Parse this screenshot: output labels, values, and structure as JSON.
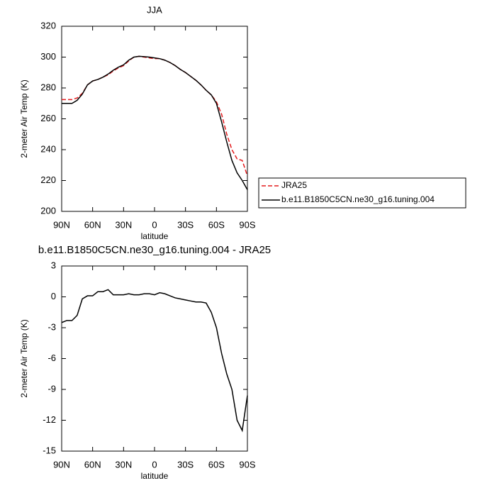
{
  "chart_data": [
    {
      "type": "line",
      "title": "JJA",
      "x_label": "latitude",
      "y_label": "2-meter Air Temp (K)",
      "x": [
        90,
        85,
        80,
        75,
        70,
        65,
        60,
        55,
        50,
        45,
        40,
        35,
        30,
        25,
        20,
        15,
        10,
        5,
        0,
        -5,
        -10,
        -15,
        -20,
        -25,
        -30,
        -35,
        -40,
        -45,
        -50,
        -55,
        -60,
        -65,
        -70,
        -75,
        -80,
        -85,
        -90
      ],
      "xlim": [
        90,
        -90
      ],
      "xticks": [
        {
          "value": 90,
          "label": "90N"
        },
        {
          "value": 60,
          "label": "60N"
        },
        {
          "value": 30,
          "label": "30N"
        },
        0,
        {
          "value": -30,
          "label": "30S"
        },
        {
          "value": -60,
          "label": "60S"
        },
        {
          "value": -90,
          "label": "90S"
        }
      ],
      "ylim": [
        200,
        320
      ],
      "yticks": [
        200,
        220,
        240,
        260,
        280,
        300,
        320
      ],
      "legend": "right",
      "series": [
        {
          "name": "JRA25",
          "color": "#e31a1c",
          "dash": true,
          "values": [
            272.5,
            272.5,
            272.5,
            273.5,
            276.5,
            282,
            284.5,
            285.5,
            287,
            288.5,
            291,
            293,
            294.5,
            297.5,
            300,
            300.5,
            300,
            299.5,
            299,
            299,
            298,
            296.5,
            294.5,
            292,
            290,
            287.5,
            285,
            282,
            278.5,
            275.5,
            271,
            263,
            250,
            240,
            234,
            233,
            223
          ]
        },
        {
          "name": "b.e11.B1850C5CN.ne30_g16.tuning.004",
          "color": "#000000",
          "dash": false,
          "values": [
            270,
            270,
            270,
            272,
            276,
            282,
            284.5,
            285.5,
            287,
            289,
            291.5,
            293.5,
            295,
            298,
            300,
            300.5,
            300.3,
            300,
            299.5,
            299,
            298,
            296.5,
            294.5,
            292,
            290,
            287.5,
            285,
            282,
            278.5,
            275.5,
            270,
            258,
            245,
            233,
            225,
            220,
            214
          ]
        }
      ]
    },
    {
      "type": "line",
      "title": "b.e11.B1850C5CN.ne30_g16.tuning.004 - JRA25",
      "x_label": "latitude",
      "y_label": "2-meter Air Temp (K)",
      "x": [
        90,
        85,
        80,
        75,
        70,
        65,
        60,
        55,
        50,
        45,
        40,
        35,
        30,
        25,
        20,
        15,
        10,
        5,
        0,
        -5,
        -10,
        -15,
        -20,
        -25,
        -30,
        -35,
        -40,
        -45,
        -50,
        -55,
        -60,
        -65,
        -70,
        -75,
        -80,
        -85,
        -90
      ],
      "xlim": [
        90,
        -90
      ],
      "xticks": [
        {
          "value": 90,
          "label": "90N"
        },
        {
          "value": 60,
          "label": "60N"
        },
        {
          "value": 30,
          "label": "30N"
        },
        0,
        {
          "value": -30,
          "label": "30S"
        },
        {
          "value": -60,
          "label": "60S"
        },
        {
          "value": -90,
          "label": "90S"
        }
      ],
      "ylim": [
        -15,
        3
      ],
      "yticks": [
        -15,
        -12,
        -9,
        -6,
        -3,
        0,
        3
      ],
      "series": [
        {
          "color": "#000000",
          "dash": false,
          "values": [
            -2.5,
            -2.3,
            -2.3,
            -1.8,
            -0.2,
            0.1,
            0.1,
            0.5,
            0.5,
            0.7,
            0.2,
            0.2,
            0.2,
            0.3,
            0.2,
            0.2,
            0.3,
            0.3,
            0.2,
            0.4,
            0.3,
            0.1,
            -0.1,
            -0.2,
            -0.3,
            -0.4,
            -0.5,
            -0.5,
            -0.6,
            -1.5,
            -3,
            -5.5,
            -7.5,
            -9,
            -12,
            -13,
            -9.6
          ]
        }
      ]
    }
  ]
}
